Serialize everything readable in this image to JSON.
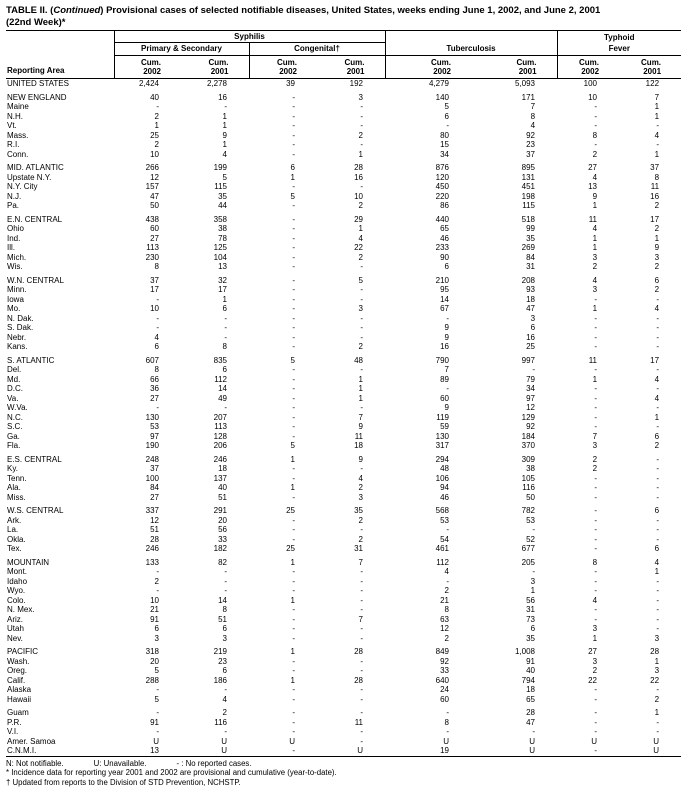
{
  "title": {
    "p1": "TABLE II. (",
    "italic": "Continued",
    "p2": ") Provisional cases of selected notifiable diseases, United States, weeks ending June 1, 2002, and June 2, 2001",
    "p3": "(22nd Week)*"
  },
  "header": {
    "reporting_area_label": "Reporting Area",
    "syphilis_label": "Syphilis",
    "primary_secondary_label": "Primary & Secondary",
    "congenital_label": "Congenital†",
    "tuberculosis_label": "Tuberculosis",
    "typhoid_label": "Typhoid",
    "fever_label": "Fever",
    "cum_cols": [
      {
        "l1": "Cum.",
        "l2": "2002"
      },
      {
        "l1": "Cum.",
        "l2": "2001"
      },
      {
        "l1": "Cum.",
        "l2": "2002"
      },
      {
        "l1": "Cum.",
        "l2": "2001"
      },
      {
        "l1": "Cum.",
        "l2": "2002"
      },
      {
        "l1": "Cum.",
        "l2": "2001"
      },
      {
        "l1": "Cum.",
        "l2": "2002"
      },
      {
        "l1": "Cum.",
        "l2": "2001"
      }
    ]
  },
  "rows": [
    {
      "area": "UNITED STATES",
      "v": [
        "2,424",
        "2,278",
        "39",
        "192",
        "4,279",
        "5,093",
        "100",
        "122"
      ]
    },
    {
      "sp": true
    },
    {
      "area": "NEW ENGLAND",
      "v": [
        "40",
        "16",
        "-",
        "3",
        "140",
        "171",
        "10",
        "7"
      ]
    },
    {
      "area": "Maine",
      "v": [
        "-",
        "-",
        "-",
        "-",
        "5",
        "7",
        "-",
        "1"
      ]
    },
    {
      "area": "N.H.",
      "v": [
        "2",
        "1",
        "-",
        "-",
        "6",
        "8",
        "-",
        "1"
      ]
    },
    {
      "area": "Vt.",
      "v": [
        "1",
        "1",
        "-",
        "-",
        "-",
        "4",
        "-",
        "-"
      ]
    },
    {
      "area": "Mass.",
      "v": [
        "25",
        "9",
        "-",
        "2",
        "80",
        "92",
        "8",
        "4"
      ]
    },
    {
      "area": "R.I.",
      "v": [
        "2",
        "1",
        "-",
        "-",
        "15",
        "23",
        "-",
        "-"
      ]
    },
    {
      "area": "Conn.",
      "v": [
        "10",
        "4",
        "-",
        "1",
        "34",
        "37",
        "2",
        "1"
      ]
    },
    {
      "sp": true
    },
    {
      "area": "MID. ATLANTIC",
      "v": [
        "266",
        "199",
        "6",
        "28",
        "876",
        "895",
        "27",
        "37"
      ]
    },
    {
      "area": "Upstate N.Y.",
      "v": [
        "12",
        "5",
        "1",
        "16",
        "120",
        "131",
        "4",
        "8"
      ]
    },
    {
      "area": "N.Y. City",
      "v": [
        "157",
        "115",
        "-",
        "-",
        "450",
        "451",
        "13",
        "11"
      ]
    },
    {
      "area": "N.J.",
      "v": [
        "47",
        "35",
        "5",
        "10",
        "220",
        "198",
        "9",
        "16"
      ]
    },
    {
      "area": "Pa.",
      "v": [
        "50",
        "44",
        "-",
        "2",
        "86",
        "115",
        "1",
        "2"
      ]
    },
    {
      "sp": true
    },
    {
      "area": "E.N. CENTRAL",
      "v": [
        "438",
        "358",
        "-",
        "29",
        "440",
        "518",
        "11",
        "17"
      ]
    },
    {
      "area": "Ohio",
      "v": [
        "60",
        "38",
        "-",
        "1",
        "65",
        "99",
        "4",
        "2"
      ]
    },
    {
      "area": "Ind.",
      "v": [
        "27",
        "78",
        "-",
        "4",
        "46",
        "35",
        "1",
        "1"
      ]
    },
    {
      "area": "Ill.",
      "v": [
        "113",
        "125",
        "-",
        "22",
        "233",
        "269",
        "1",
        "9"
      ]
    },
    {
      "area": "Mich.",
      "v": [
        "230",
        "104",
        "-",
        "2",
        "90",
        "84",
        "3",
        "3"
      ]
    },
    {
      "area": "Wis.",
      "v": [
        "8",
        "13",
        "-",
        "-",
        "6",
        "31",
        "2",
        "2"
      ]
    },
    {
      "sp": true
    },
    {
      "area": "W.N. CENTRAL",
      "v": [
        "37",
        "32",
        "-",
        "5",
        "210",
        "208",
        "4",
        "6"
      ]
    },
    {
      "area": "Minn.",
      "v": [
        "17",
        "17",
        "-",
        "-",
        "95",
        "93",
        "3",
        "2"
      ]
    },
    {
      "area": "Iowa",
      "v": [
        "-",
        "1",
        "-",
        "-",
        "14",
        "18",
        "-",
        "-"
      ]
    },
    {
      "area": "Mo.",
      "v": [
        "10",
        "6",
        "-",
        "3",
        "67",
        "47",
        "1",
        "4"
      ]
    },
    {
      "area": "N. Dak.",
      "v": [
        "-",
        "-",
        "-",
        "-",
        "-",
        "3",
        "-",
        "-"
      ]
    },
    {
      "area": "S. Dak.",
      "v": [
        "-",
        "-",
        "-",
        "-",
        "9",
        "6",
        "-",
        "-"
      ]
    },
    {
      "area": "Nebr.",
      "v": [
        "4",
        "-",
        "-",
        "-",
        "9",
        "16",
        "-",
        "-"
      ]
    },
    {
      "area": "Kans.",
      "v": [
        "6",
        "8",
        "-",
        "2",
        "16",
        "25",
        "-",
        "-"
      ]
    },
    {
      "sp": true
    },
    {
      "area": "S. ATLANTIC",
      "v": [
        "607",
        "835",
        "5",
        "48",
        "790",
        "997",
        "11",
        "17"
      ]
    },
    {
      "area": "Del.",
      "v": [
        "8",
        "6",
        "-",
        "-",
        "7",
        "-",
        "-",
        "-"
      ]
    },
    {
      "area": "Md.",
      "v": [
        "66",
        "112",
        "-",
        "1",
        "89",
        "79",
        "1",
        "4"
      ]
    },
    {
      "area": "D.C.",
      "v": [
        "36",
        "14",
        "-",
        "1",
        "-",
        "34",
        "-",
        "-"
      ]
    },
    {
      "area": "Va.",
      "v": [
        "27",
        "49",
        "-",
        "1",
        "60",
        "97",
        "-",
        "4"
      ]
    },
    {
      "area": "W.Va.",
      "v": [
        "-",
        "-",
        "-",
        "-",
        "9",
        "12",
        "-",
        "-"
      ]
    },
    {
      "area": "N.C.",
      "v": [
        "130",
        "207",
        "-",
        "7",
        "119",
        "129",
        "-",
        "1"
      ]
    },
    {
      "area": "S.C.",
      "v": [
        "53",
        "113",
        "-",
        "9",
        "59",
        "92",
        "-",
        "-"
      ]
    },
    {
      "area": "Ga.",
      "v": [
        "97",
        "128",
        "-",
        "11",
        "130",
        "184",
        "7",
        "6"
      ]
    },
    {
      "area": "Fla.",
      "v": [
        "190",
        "206",
        "5",
        "18",
        "317",
        "370",
        "3",
        "2"
      ]
    },
    {
      "sp": true
    },
    {
      "area": "E.S. CENTRAL",
      "v": [
        "248",
        "246",
        "1",
        "9",
        "294",
        "309",
        "2",
        "-"
      ]
    },
    {
      "area": "Ky.",
      "v": [
        "37",
        "18",
        "-",
        "-",
        "48",
        "38",
        "2",
        "-"
      ]
    },
    {
      "area": "Tenn.",
      "v": [
        "100",
        "137",
        "-",
        "4",
        "106",
        "105",
        "-",
        "-"
      ]
    },
    {
      "area": "Ala.",
      "v": [
        "84",
        "40",
        "1",
        "2",
        "94",
        "116",
        "-",
        "-"
      ]
    },
    {
      "area": "Miss.",
      "v": [
        "27",
        "51",
        "-",
        "3",
        "46",
        "50",
        "-",
        "-"
      ]
    },
    {
      "sp": true
    },
    {
      "area": "W.S. CENTRAL",
      "v": [
        "337",
        "291",
        "25",
        "35",
        "568",
        "782",
        "-",
        "6"
      ]
    },
    {
      "area": "Ark.",
      "v": [
        "12",
        "20",
        "-",
        "2",
        "53",
        "53",
        "-",
        "-"
      ]
    },
    {
      "area": "La.",
      "v": [
        "51",
        "56",
        "-",
        "-",
        "-",
        "-",
        "-",
        "-"
      ]
    },
    {
      "area": "Okla.",
      "v": [
        "28",
        "33",
        "-",
        "2",
        "54",
        "52",
        "-",
        "-"
      ]
    },
    {
      "area": "Tex.",
      "v": [
        "246",
        "182",
        "25",
        "31",
        "461",
        "677",
        "-",
        "6"
      ]
    },
    {
      "sp": true
    },
    {
      "area": "MOUNTAIN",
      "v": [
        "133",
        "82",
        "1",
        "7",
        "112",
        "205",
        "8",
        "4"
      ]
    },
    {
      "area": "Mont.",
      "v": [
        "-",
        "-",
        "-",
        "-",
        "4",
        "-",
        "-",
        "1"
      ]
    },
    {
      "area": "Idaho",
      "v": [
        "2",
        "-",
        "-",
        "-",
        "-",
        "3",
        "-",
        "-"
      ]
    },
    {
      "area": "Wyo.",
      "v": [
        "-",
        "-",
        "-",
        "-",
        "2",
        "1",
        "-",
        "-"
      ]
    },
    {
      "area": "Colo.",
      "v": [
        "10",
        "14",
        "1",
        "-",
        "21",
        "56",
        "4",
        "-"
      ]
    },
    {
      "area": "N. Mex.",
      "v": [
        "21",
        "8",
        "-",
        "-",
        "8",
        "31",
        "-",
        "-"
      ]
    },
    {
      "area": "Ariz.",
      "v": [
        "91",
        "51",
        "-",
        "7",
        "63",
        "73",
        "-",
        "-"
      ]
    },
    {
      "area": "Utah",
      "v": [
        "6",
        "6",
        "-",
        "-",
        "12",
        "6",
        "3",
        "-"
      ]
    },
    {
      "area": "Nev.",
      "v": [
        "3",
        "3",
        "-",
        "-",
        "2",
        "35",
        "1",
        "3"
      ]
    },
    {
      "sp": true
    },
    {
      "area": "PACIFIC",
      "v": [
        "318",
        "219",
        "1",
        "28",
        "849",
        "1,008",
        "27",
        "28"
      ]
    },
    {
      "area": "Wash.",
      "v": [
        "20",
        "23",
        "-",
        "-",
        "92",
        "91",
        "3",
        "1"
      ]
    },
    {
      "area": "Oreg.",
      "v": [
        "5",
        "6",
        "-",
        "-",
        "33",
        "40",
        "2",
        "3"
      ]
    },
    {
      "area": "Calif.",
      "v": [
        "288",
        "186",
        "1",
        "28",
        "640",
        "794",
        "22",
        "22"
      ]
    },
    {
      "area": "Alaska",
      "v": [
        "-",
        "-",
        "-",
        "-",
        "24",
        "18",
        "-",
        "-"
      ]
    },
    {
      "area": "Hawaii",
      "v": [
        "5",
        "4",
        "-",
        "-",
        "60",
        "65",
        "-",
        "2"
      ]
    },
    {
      "sp": true
    },
    {
      "area": "Guam",
      "v": [
        "-",
        "2",
        "-",
        "-",
        "-",
        "28",
        "-",
        "1"
      ]
    },
    {
      "area": "P.R.",
      "v": [
        "91",
        "116",
        "-",
        "11",
        "8",
        "47",
        "-",
        "-"
      ]
    },
    {
      "area": "V.I.",
      "v": [
        "-",
        "-",
        "-",
        "-",
        "-",
        "-",
        "-",
        "-"
      ]
    },
    {
      "area": "Amer. Samoa",
      "v": [
        "U",
        "U",
        "U",
        "-",
        "U",
        "U",
        "U",
        "U"
      ]
    },
    {
      "area": "C.N.M.I.",
      "v": [
        "13",
        "U",
        "-",
        "U",
        "19",
        "U",
        "-",
        "U"
      ]
    }
  ],
  "footnotes": {
    "legend": [
      "N: Not notifiable.",
      "U: Unavailable.",
      "- : No reported cases."
    ],
    "notes": [
      "* Incidence data for reporting year 2001 and 2002 are provisional and cumulative (year-to-date).",
      "† Updated from reports to the Division of STD Prevention, NCHSTP."
    ]
  }
}
